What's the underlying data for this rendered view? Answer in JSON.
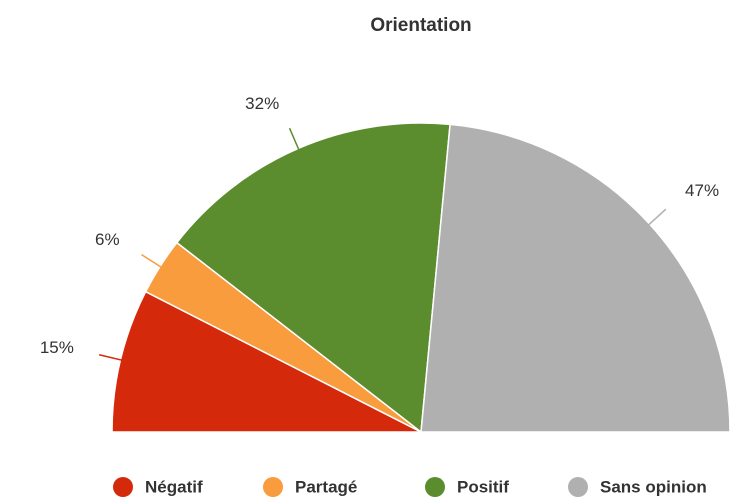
{
  "chart_data": {
    "type": "semi-pie",
    "title": "Orientation",
    "categories": [
      "Négatif",
      "Partagé",
      "Positif",
      "Sans opinion"
    ],
    "values": [
      15,
      6,
      32,
      47
    ],
    "value_labels": [
      "15%",
      "6%",
      "32%",
      "47%"
    ],
    "colors": [
      "#d42a0b",
      "#f89c3e",
      "#5b8c2e",
      "#b0b0b0"
    ],
    "legend": "bottom"
  }
}
